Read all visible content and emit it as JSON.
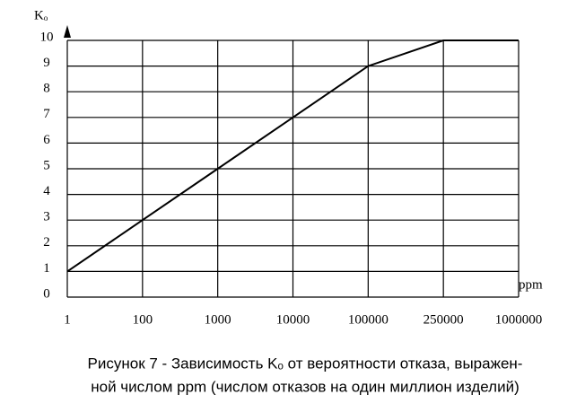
{
  "chart_data": {
    "type": "line",
    "y_label": "Kₒ",
    "x_label": "ppm",
    "categories": [
      "1",
      "100",
      "1000",
      "10000",
      "100000",
      "250000",
      "1000000"
    ],
    "values": [
      1,
      3,
      5,
      7,
      9,
      10,
      10
    ],
    "color": "#000000",
    "ylim": [
      0,
      10
    ],
    "yticks": [
      0,
      1,
      2,
      3,
      4,
      5,
      6,
      7,
      8,
      9,
      10
    ],
    "grid": true,
    "caption": [
      "Рисунок 7 - Зависимость Kₒ от вероятности отказа, выражен-",
      "ной числом ppm (числом отказов на один миллион изделий)"
    ]
  }
}
